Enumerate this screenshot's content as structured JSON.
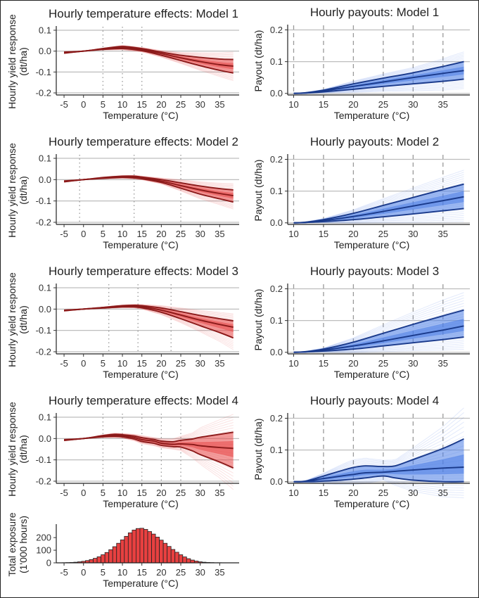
{
  "chart_data": [
    {
      "type": "line",
      "panel": "effect",
      "title": "Hourly temperature effects: Model 1",
      "xlabel": "Temperature (°C)",
      "ylabel": [
        "Hourly yield response",
        "(dt/ha)"
      ],
      "xlim": [
        -7,
        40
      ],
      "ylim": [
        -0.21,
        0.11
      ],
      "xticks": [
        -5,
        0,
        5,
        10,
        15,
        20,
        25,
        30,
        35
      ],
      "xtick_labels": [
        "-5",
        "0",
        "5",
        "10",
        "15",
        "20",
        "25",
        "30",
        "35"
      ],
      "yticks": [
        0.1,
        0.0,
        -0.1,
        -0.2
      ],
      "ytick_labels": [
        "0.1",
        "0.0",
        "-0.1",
        "-0.2"
      ],
      "gridlines_y": [
        0.1,
        0,
        -0.1,
        -0.2
      ],
      "knots": [
        5,
        10,
        15
      ],
      "x": [
        -5,
        0,
        5,
        10,
        15,
        20,
        25,
        30,
        35,
        38.5
      ],
      "series": [
        {
          "role": "upper",
          "values": [
            -0.005,
            0.0,
            0.012,
            0.022,
            0.012,
            -0.005,
            -0.02,
            -0.03,
            -0.038,
            -0.04
          ]
        },
        {
          "role": "mean",
          "values": [
            -0.008,
            0.0,
            0.01,
            0.017,
            0.007,
            -0.012,
            -0.032,
            -0.05,
            -0.065,
            -0.072
          ]
        },
        {
          "role": "lower",
          "values": [
            -0.01,
            0.0,
            0.008,
            0.012,
            0.002,
            -0.02,
            -0.045,
            -0.07,
            -0.092,
            -0.105
          ]
        }
      ],
      "colors": {
        "band": "#e84a4a",
        "line": "#8b1a1a"
      }
    },
    {
      "type": "line",
      "panel": "payout",
      "title": "Hourly payouts: Model 1",
      "xlabel": "Temperature (°C)",
      "ylabel": [
        "Payout (dt/ha)"
      ],
      "xlim": [
        9,
        39.5
      ],
      "ylim": [
        -0.005,
        0.21
      ],
      "xticks": [
        10,
        15,
        20,
        25,
        30,
        35
      ],
      "xtick_labels": [
        "10",
        "15",
        "20",
        "25",
        "30",
        "35"
      ],
      "yticks": [
        0.2,
        0.1,
        0.0
      ],
      "ytick_labels": [
        "0.2",
        "0.1",
        "0.0"
      ],
      "gridlines_y": [
        0.2,
        0.1,
        0
      ],
      "knots": [
        10,
        15,
        20,
        25,
        30,
        35
      ],
      "x": [
        10,
        12,
        15,
        20,
        25,
        30,
        35,
        38.5
      ],
      "series": [
        {
          "role": "upper",
          "values": [
            0,
            0.002,
            0.01,
            0.03,
            0.048,
            0.065,
            0.085,
            0.1
          ]
        },
        {
          "role": "mean",
          "values": [
            0,
            0.001,
            0.008,
            0.022,
            0.036,
            0.05,
            0.063,
            0.072
          ]
        },
        {
          "role": "lower",
          "values": [
            0,
            0.001,
            0.005,
            0.013,
            0.022,
            0.03,
            0.038,
            0.045
          ]
        }
      ],
      "colors": {
        "band": "#4f7fe6",
        "line": "#1a3a8b"
      }
    },
    {
      "type": "line",
      "panel": "effect",
      "title": "Hourly temperature effects: Model 2",
      "xlabel": "Temperature (°C)",
      "ylabel": [
        "Hourly yield response",
        "(dt/ha)"
      ],
      "xlim": [
        -7,
        40
      ],
      "ylim": [
        -0.21,
        0.11
      ],
      "xticks": [
        -5,
        0,
        5,
        10,
        15,
        20,
        25,
        30,
        35
      ],
      "xtick_labels": [
        "-5",
        "0",
        "5",
        "10",
        "15",
        "20",
        "25",
        "30",
        "35"
      ],
      "yticks": [
        0.1,
        0.0,
        -0.1,
        -0.2
      ],
      "ytick_labels": [
        "0.1",
        "0.0",
        "-0.1",
        "-0.2"
      ],
      "gridlines_y": [
        0.1,
        0,
        -0.1,
        -0.2
      ],
      "knots": [
        -1,
        13,
        25
      ],
      "x": [
        -5,
        0,
        5,
        10,
        13,
        15,
        20,
        25,
        30,
        35,
        38.5
      ],
      "series": [
        {
          "role": "upper",
          "values": [
            -0.006,
            0.0,
            0.01,
            0.016,
            0.016,
            0.012,
            0.0,
            -0.015,
            -0.03,
            -0.042,
            -0.048
          ]
        },
        {
          "role": "mean",
          "values": [
            -0.008,
            0.0,
            0.008,
            0.013,
            0.012,
            0.008,
            -0.007,
            -0.028,
            -0.048,
            -0.065,
            -0.075
          ]
        },
        {
          "role": "lower",
          "values": [
            -0.01,
            0.0,
            0.006,
            0.01,
            0.008,
            0.004,
            -0.013,
            -0.04,
            -0.068,
            -0.09,
            -0.105
          ]
        }
      ],
      "colors": {
        "band": "#e84a4a",
        "line": "#8b1a1a"
      }
    },
    {
      "type": "line",
      "panel": "payout",
      "title": "Hourly payouts: Model 2",
      "xlabel": "Temperature (°C)",
      "ylabel": [
        "Payout (dt/ha)"
      ],
      "xlim": [
        9,
        39.5
      ],
      "ylim": [
        -0.005,
        0.21
      ],
      "xticks": [
        10,
        15,
        20,
        25,
        30,
        35
      ],
      "xtick_labels": [
        "10",
        "15",
        "20",
        "25",
        "30",
        "35"
      ],
      "yticks": [
        0.2,
        0.1,
        0.0
      ],
      "ytick_labels": [
        "0.2",
        "0.1",
        "0.0"
      ],
      "gridlines_y": [
        0.2,
        0.1,
        0
      ],
      "knots": [
        10,
        15,
        20,
        25,
        30,
        35
      ],
      "x": [
        10,
        12,
        15,
        20,
        25,
        30,
        35,
        38.5
      ],
      "series": [
        {
          "role": "upper",
          "values": [
            0,
            0.002,
            0.01,
            0.03,
            0.055,
            0.08,
            0.105,
            0.122
          ]
        },
        {
          "role": "mean",
          "values": [
            0,
            0.001,
            0.007,
            0.02,
            0.036,
            0.053,
            0.07,
            0.082
          ]
        },
        {
          "role": "lower",
          "values": [
            0,
            0.001,
            0.004,
            0.01,
            0.019,
            0.028,
            0.038,
            0.045
          ]
        }
      ],
      "colors": {
        "band": "#4f7fe6",
        "line": "#1a3a8b"
      }
    },
    {
      "type": "line",
      "panel": "effect",
      "title": "Hourly temperature effects: Model 3",
      "xlabel": "Temperature (°C)",
      "ylabel": [
        "Hourly yield response",
        "(dt/ha)"
      ],
      "xlim": [
        -7,
        40
      ],
      "ylim": [
        -0.21,
        0.11
      ],
      "xticks": [
        -5,
        0,
        5,
        10,
        15,
        20,
        25,
        30,
        35
      ],
      "xtick_labels": [
        "-5",
        "0",
        "5",
        "10",
        "15",
        "20",
        "25",
        "30",
        "35"
      ],
      "yticks": [
        0.1,
        0.0,
        -0.1,
        -0.2
      ],
      "ytick_labels": [
        "0.1",
        "0.0",
        "-0.1",
        "-0.2"
      ],
      "gridlines_y": [
        0.1,
        0,
        -0.1,
        -0.2
      ],
      "knots": [
        6.5,
        14,
        22.5
      ],
      "x": [
        -5,
        0,
        5,
        10,
        13,
        15,
        20,
        25,
        30,
        35,
        38.5
      ],
      "series": [
        {
          "role": "upper",
          "values": [
            -0.005,
            0.0,
            0.008,
            0.016,
            0.018,
            0.016,
            0.005,
            -0.012,
            -0.03,
            -0.045,
            -0.055
          ]
        },
        {
          "role": "mean",
          "values": [
            -0.006,
            0.0,
            0.007,
            0.013,
            0.014,
            0.011,
            -0.005,
            -0.028,
            -0.052,
            -0.072,
            -0.085
          ]
        },
        {
          "role": "lower",
          "values": [
            -0.008,
            0.0,
            0.005,
            0.01,
            0.01,
            0.006,
            -0.015,
            -0.045,
            -0.078,
            -0.11,
            -0.135
          ]
        }
      ],
      "colors": {
        "band": "#e84a4a",
        "line": "#8b1a1a"
      }
    },
    {
      "type": "line",
      "panel": "payout",
      "title": "Hourly payouts: Model 3",
      "xlabel": "Temperature (°C)",
      "ylabel": [
        "Payout (dt/ha)"
      ],
      "xlim": [
        9,
        39.5
      ],
      "ylim": [
        -0.005,
        0.21
      ],
      "xticks": [
        10,
        15,
        20,
        25,
        30,
        35
      ],
      "xtick_labels": [
        "10",
        "15",
        "20",
        "25",
        "30",
        "35"
      ],
      "yticks": [
        0.2,
        0.1,
        0.0
      ],
      "ytick_labels": [
        "0.2",
        "0.1",
        "0.0"
      ],
      "gridlines_y": [
        0.2,
        0.1,
        0
      ],
      "knots": [
        10,
        15,
        20,
        25,
        30,
        35
      ],
      "x": [
        10,
        12,
        15,
        20,
        25,
        30,
        35,
        38.5
      ],
      "series": [
        {
          "role": "upper",
          "values": [
            0,
            0.002,
            0.01,
            0.032,
            0.06,
            0.088,
            0.115,
            0.133
          ]
        },
        {
          "role": "mean",
          "values": [
            0,
            0.001,
            0.007,
            0.02,
            0.036,
            0.053,
            0.07,
            0.083
          ]
        },
        {
          "role": "lower",
          "values": [
            0,
            0.001,
            0.004,
            0.01,
            0.02,
            0.03,
            0.04,
            0.048
          ]
        }
      ],
      "colors": {
        "band": "#4f7fe6",
        "line": "#1a3a8b"
      }
    },
    {
      "type": "line",
      "panel": "effect",
      "title": "Hourly temperature effects: Model 4",
      "xlabel": "Temperature (°C)",
      "ylabel": [
        "Hourly yield response",
        "(dt/ha)"
      ],
      "xlim": [
        -7,
        40
      ],
      "ylim": [
        -0.21,
        0.11
      ],
      "xticks": [
        -5,
        0,
        5,
        10,
        15,
        20,
        25,
        30,
        35
      ],
      "xtick_labels": [
        "-5",
        "0",
        "5",
        "10",
        "15",
        "20",
        "25",
        "30",
        "35"
      ],
      "yticks": [
        0.1,
        0.0,
        -0.1,
        -0.2
      ],
      "ytick_labels": [
        "0.1",
        "0.0",
        "-0.1",
        "-0.2"
      ],
      "gridlines_y": [
        0.1,
        0,
        -0.1,
        -0.2
      ],
      "knots": [
        5,
        10,
        15,
        20,
        25
      ],
      "x": [
        -5,
        0,
        5,
        8,
        10,
        13,
        15,
        18,
        20,
        23,
        25,
        28,
        30,
        35,
        38.5
      ],
      "series": [
        {
          "role": "upper",
          "values": [
            -0.005,
            0.0,
            0.014,
            0.02,
            0.018,
            0.012,
            0.004,
            -0.004,
            -0.012,
            -0.015,
            -0.008,
            -0.002,
            0.006,
            0.02,
            0.03
          ]
        },
        {
          "role": "mean",
          "values": [
            -0.007,
            0.0,
            0.011,
            0.015,
            0.013,
            0.005,
            -0.005,
            -0.012,
            -0.022,
            -0.027,
            -0.025,
            -0.028,
            -0.034,
            -0.042,
            -0.046
          ]
        },
        {
          "role": "lower",
          "values": [
            -0.009,
            0.0,
            0.008,
            0.01,
            0.008,
            -0.002,
            -0.014,
            -0.022,
            -0.032,
            -0.038,
            -0.04,
            -0.058,
            -0.075,
            -0.11,
            -0.138
          ]
        }
      ],
      "colors": {
        "band": "#e84a4a",
        "line": "#8b1a1a"
      }
    },
    {
      "type": "line",
      "panel": "payout",
      "title": "Hourly payouts: Model 4",
      "xlabel": "Temperature (°C)",
      "ylabel": [
        "Payout (dt/ha)"
      ],
      "xlim": [
        9,
        39.5
      ],
      "ylim": [
        -0.005,
        0.21
      ],
      "xticks": [
        10,
        15,
        20,
        25,
        30,
        35
      ],
      "xtick_labels": [
        "10",
        "15",
        "20",
        "25",
        "30",
        "35"
      ],
      "yticks": [
        0.2,
        0.1,
        0.0
      ],
      "ytick_labels": [
        "0.2",
        "0.1",
        "0.0"
      ],
      "gridlines_y": [
        0.2,
        0.1,
        0
      ],
      "knots": [
        10,
        15,
        20,
        25,
        30,
        35
      ],
      "x": [
        10,
        12,
        15,
        18,
        20,
        22,
        25,
        27,
        30,
        35,
        38.5
      ],
      "series": [
        {
          "role": "upper",
          "values": [
            0,
            0.002,
            0.018,
            0.035,
            0.045,
            0.05,
            0.048,
            0.05,
            0.07,
            0.105,
            0.135
          ]
        },
        {
          "role": "mean",
          "values": [
            0,
            0.001,
            0.01,
            0.018,
            0.023,
            0.028,
            0.03,
            0.033,
            0.037,
            0.043,
            0.046
          ]
        },
        {
          "role": "lower",
          "values": [
            0,
            0.0,
            0.002,
            0.005,
            0.008,
            0.012,
            0.018,
            0.012,
            0.005,
            0.0,
            0.0
          ]
        }
      ],
      "colors": {
        "band": "#4f7fe6",
        "line": "#1a3a8b"
      }
    },
    {
      "type": "bar",
      "panel": "exposure",
      "title": "",
      "xlabel": "Temperature (°C)",
      "ylabel": [
        "Total exposure",
        "(1'000 hours)"
      ],
      "xlim": [
        -7,
        40
      ],
      "ylim": [
        0,
        290
      ],
      "xticks": [
        -5,
        0,
        5,
        10,
        15,
        20,
        25,
        30,
        35
      ],
      "xtick_labels": [
        "-5",
        "0",
        "5",
        "10",
        "15",
        "20",
        "25",
        "30",
        "35"
      ],
      "yticks": [
        200,
        100,
        0
      ],
      "ytick_labels": [
        "200",
        "100",
        "0"
      ],
      "categories": [
        -5,
        -4,
        -3,
        -2,
        -1,
        0,
        1,
        2,
        3,
        4,
        5,
        6,
        7,
        8,
        9,
        10,
        11,
        12,
        13,
        14,
        15,
        16,
        17,
        18,
        19,
        20,
        21,
        22,
        23,
        24,
        25,
        26,
        27,
        28,
        29,
        30,
        31,
        32,
        33,
        34,
        35,
        36,
        37,
        38
      ],
      "values": [
        1,
        2,
        3,
        5,
        8,
        12,
        18,
        26,
        36,
        48,
        64,
        82,
        104,
        128,
        155,
        182,
        210,
        238,
        260,
        272,
        274,
        265,
        248,
        228,
        204,
        180,
        155,
        130,
        106,
        84,
        64,
        47,
        33,
        22,
        14,
        8,
        5,
        3,
        2,
        1,
        1,
        0,
        0,
        0
      ],
      "colors": {
        "bar": "#e84040",
        "edge": "#222222"
      }
    }
  ]
}
